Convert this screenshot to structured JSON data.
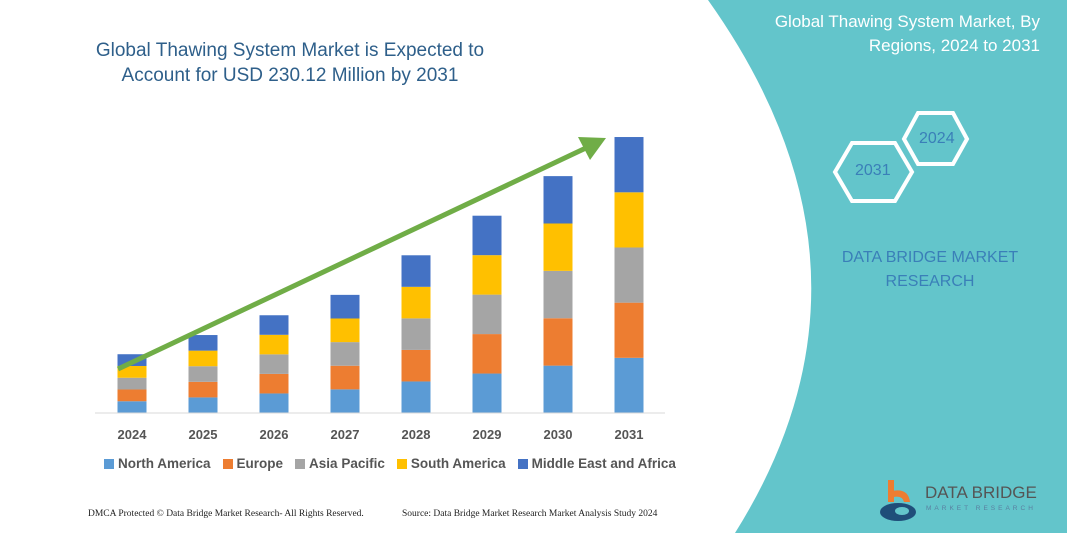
{
  "header": {
    "title": "Global Thawing System Market is Expected to Account for USD 230.12 Million by 2031",
    "right_title": "Global Thawing System Market, By Regions, 2024 to 2031"
  },
  "side_panel": {
    "hex_start": "2024",
    "hex_end": "2031",
    "brand": "DATA BRIDGE MARKET RESEARCH",
    "logo_text": "DATA BRIDGE",
    "logo_sub": "MARKET RESEARCH",
    "panel_color": "#63c5cb"
  },
  "footer": {
    "left": "DMCA Protected © Data Bridge Market Research- All Rights Reserved.",
    "right": "Source: Data Bridge Market Research Market Analysis Study 2024"
  },
  "chart_data": {
    "type": "bar",
    "stacked": true,
    "title": "Global Thawing System Market is Expected to Account for USD 230.12 Million by 2031",
    "categories": [
      "2024",
      "2025",
      "2026",
      "2027",
      "2028",
      "2029",
      "2030",
      "2031"
    ],
    "y_axis_shown": false,
    "grid": false,
    "legend_position": "bottom",
    "trend_arrow": true,
    "trend_arrow_color": "#70ad47",
    "series": [
      {
        "name": "North America",
        "color": "#5b9bd5",
        "values": [
          9.8,
          13.0,
          16.3,
          19.7,
          26.3,
          32.9,
          39.5,
          46.0
        ]
      },
      {
        "name": "Europe",
        "color": "#ed7d31",
        "values": [
          9.8,
          13.0,
          16.3,
          19.7,
          26.3,
          32.9,
          39.5,
          46.0
        ]
      },
      {
        "name": "Asia Pacific",
        "color": "#a5a5a5",
        "values": [
          9.8,
          13.0,
          16.3,
          19.7,
          26.3,
          32.9,
          39.5,
          46.0
        ]
      },
      {
        "name": "South America",
        "color": "#ffc000",
        "values": [
          9.8,
          13.0,
          16.3,
          19.7,
          26.3,
          32.9,
          39.5,
          46.0
        ]
      },
      {
        "name": "Middle East and Africa",
        "color": "#4472c4",
        "values": [
          9.8,
          13.0,
          16.3,
          19.7,
          26.3,
          32.9,
          39.5,
          46.1
        ]
      }
    ]
  }
}
